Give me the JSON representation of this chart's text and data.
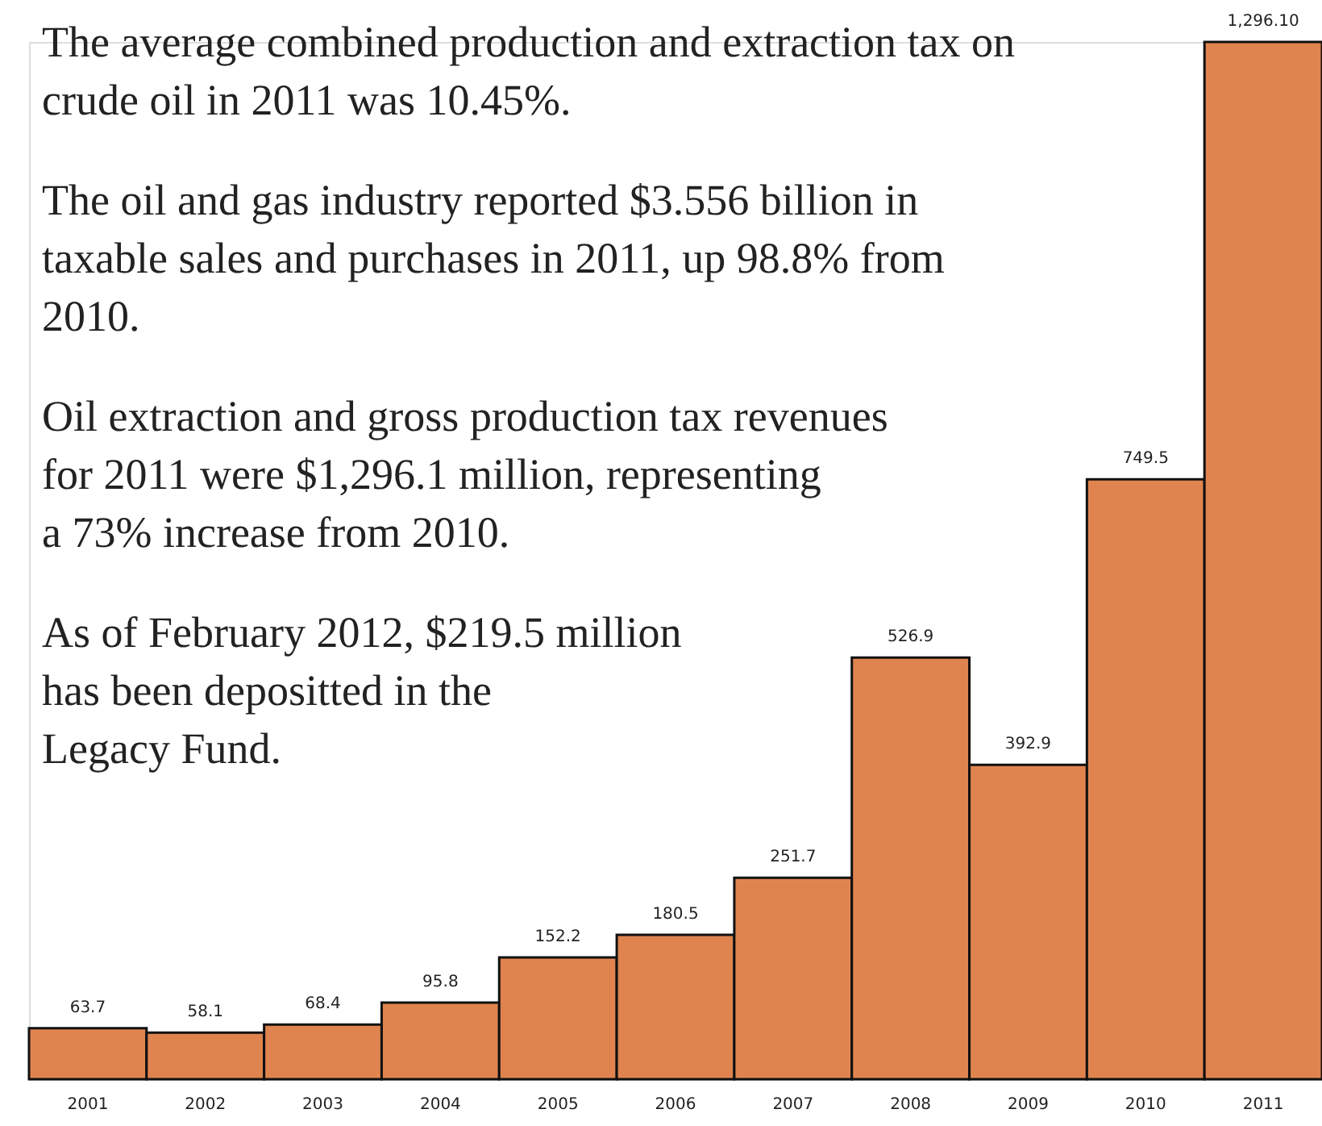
{
  "chart_data": {
    "type": "bar",
    "categories": [
      "2001",
      "2002",
      "2003",
      "2004",
      "2005",
      "2006",
      "2007",
      "2008",
      "2009",
      "2010",
      "2011"
    ],
    "values": [
      63.7,
      58.1,
      68.4,
      95.8,
      152.2,
      180.5,
      251.7,
      526.9,
      392.9,
      749.5,
      1296.1
    ],
    "value_labels": [
      "63.7",
      "58.1",
      "68.4",
      "95.8",
      "152.2",
      "180.5",
      "251.7",
      "526.9",
      "392.9",
      "749.5",
      "1,296.10"
    ],
    "color": "#e0844f",
    "annotations": [
      "The average combined production and extraction tax on\ncrude oil in 2011 was 10.45%.",
      "The oil and gas industry reported $3.556 billion in\ntaxable sales and purchases in 2011, up 98.8% from\n2010.",
      "Oil extraction and gross production tax revenues\nfor 2011 were $1,296.1 million, representing\na 73% increase from 2010.",
      "As of February 2012, $219.5 million\nhas been depositted in the\nLegacy Fund."
    ]
  }
}
